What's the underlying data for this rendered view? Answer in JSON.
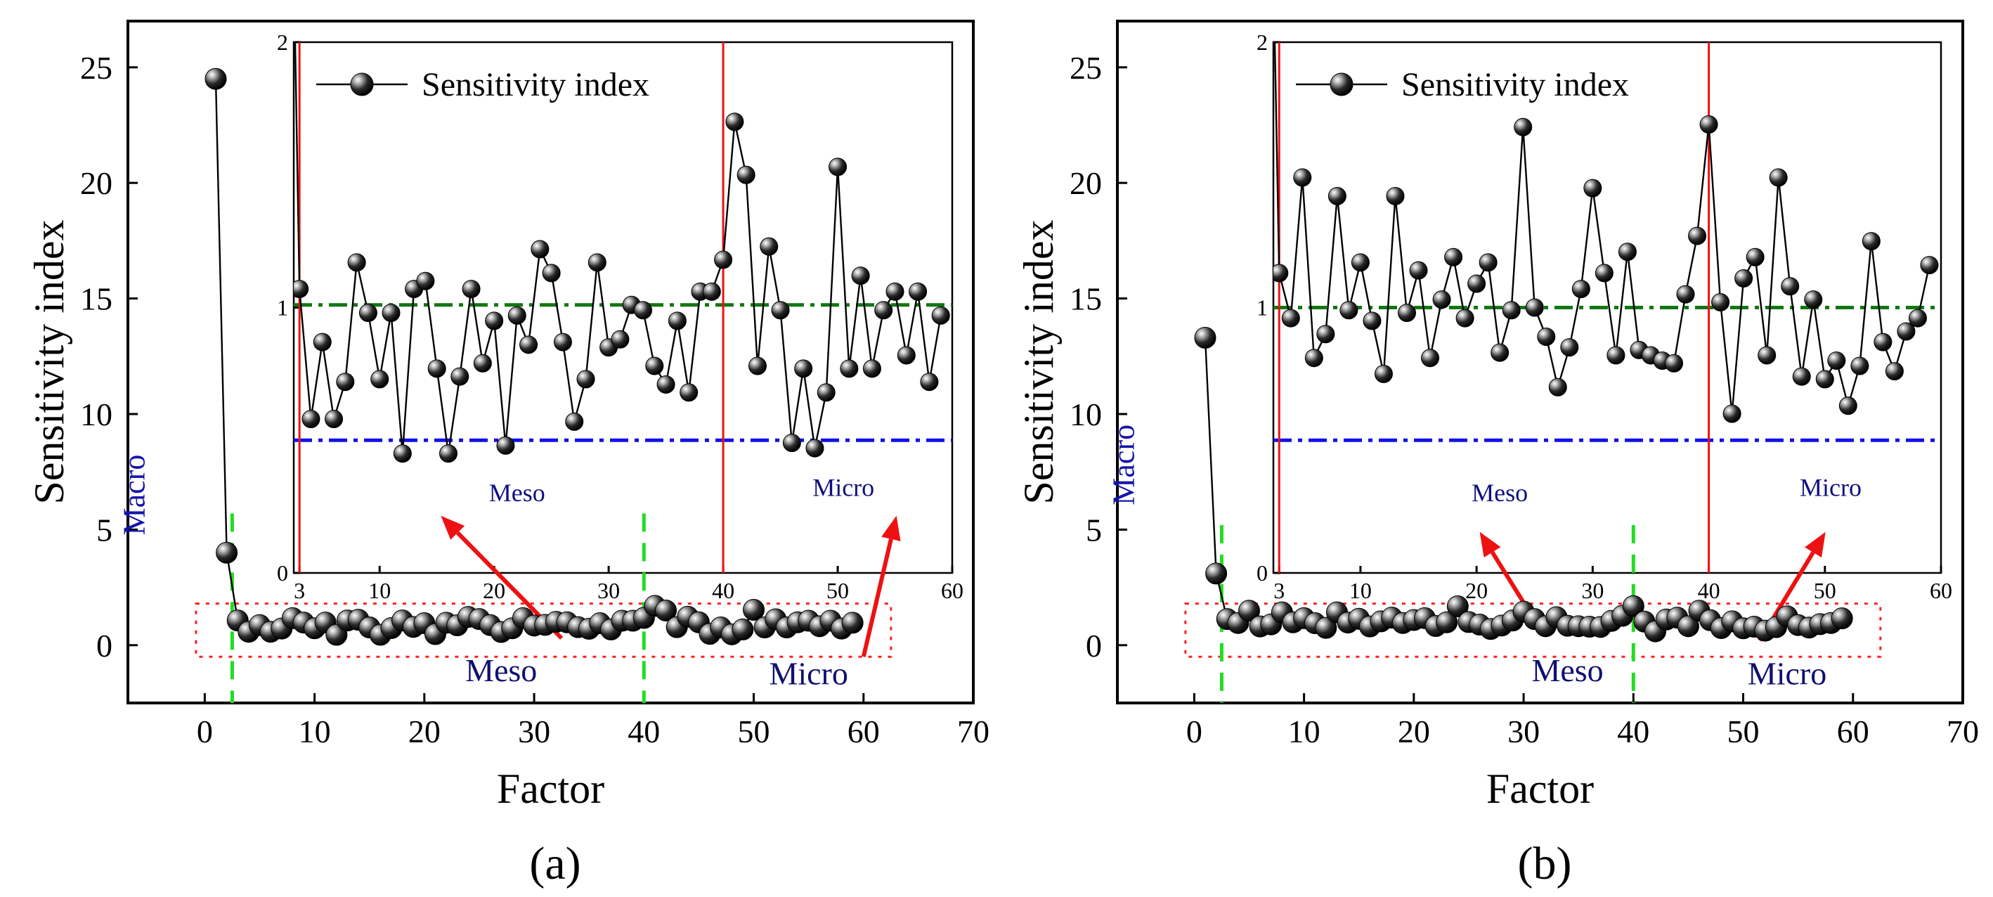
{
  "chart_data": [
    {
      "panel_label": "(a)",
      "type": "scatter",
      "xlabel": "Factor",
      "ylabel": "Sensitivity index",
      "xlim": [
        -7,
        70
      ],
      "ylim": [
        -2.5,
        27
      ],
      "xticks": [
        0,
        10,
        20,
        30,
        40,
        50,
        60,
        70
      ],
      "yticks": [
        0,
        5,
        10,
        15,
        20,
        25
      ],
      "x": [
        1,
        2,
        3,
        4,
        5,
        6,
        7,
        8,
        9,
        10,
        11,
        12,
        13,
        14,
        15,
        16,
        17,
        18,
        19,
        20,
        21,
        22,
        23,
        24,
        25,
        26,
        27,
        28,
        29,
        30,
        31,
        32,
        33,
        34,
        35,
        36,
        37,
        38,
        39,
        40,
        41,
        42,
        43,
        44,
        45,
        46,
        47,
        48,
        49,
        50,
        51,
        52,
        53,
        54,
        55,
        56,
        57,
        58,
        59
      ],
      "values": [
        24.5,
        4.0,
        1.07,
        0.58,
        0.87,
        0.58,
        0.72,
        1.17,
        0.98,
        0.73,
        0.98,
        0.45,
        1.07,
        1.1,
        0.77,
        0.45,
        0.74,
        1.07,
        0.79,
        0.95,
        0.48,
        0.97,
        0.86,
        1.22,
        1.13,
        0.87,
        0.57,
        0.73,
        1.17,
        0.85,
        0.88,
        1.01,
        0.99,
        0.78,
        0.71,
        0.95,
        0.68,
        1.06,
        1.06,
        1.18,
        1.7,
        1.5,
        0.78,
        1.23,
        0.99,
        0.49,
        0.77,
        0.47,
        0.68,
        1.53,
        0.77,
        1.12,
        0.77,
        0.99,
        1.06,
        0.82,
        1.06,
        0.72,
        0.97
      ],
      "legend": "Sensitivity index",
      "region_labels": {
        "macro": "Macro",
        "meso": "Meso",
        "micro": "Micro"
      },
      "inset": {
        "xlim": [
          2.5,
          60
        ],
        "ylim": [
          0,
          2
        ],
        "xticks": [
          3,
          10,
          20,
          30,
          40,
          50,
          60
        ],
        "yticks": [
          0,
          1,
          2
        ],
        "x_start": 3,
        "vlines": [
          3,
          40
        ],
        "hlines": [
          1.01,
          0.5
        ],
        "region_labels": {
          "meso": "Meso",
          "micro": "Micro"
        }
      }
    },
    {
      "panel_label": "(b)",
      "type": "scatter",
      "xlabel": "Factor",
      "ylabel": "Sensitivity index",
      "xlim": [
        -7,
        70
      ],
      "ylim": [
        -2.5,
        27
      ],
      "xticks": [
        0,
        10,
        20,
        30,
        40,
        50,
        60,
        70
      ],
      "yticks": [
        0,
        5,
        10,
        15,
        20,
        25
      ],
      "x": [
        1,
        2,
        3,
        4,
        5,
        6,
        7,
        8,
        9,
        10,
        11,
        12,
        13,
        14,
        15,
        16,
        17,
        18,
        19,
        20,
        21,
        22,
        23,
        24,
        25,
        26,
        27,
        28,
        29,
        30,
        31,
        32,
        33,
        34,
        35,
        36,
        37,
        38,
        39,
        40,
        41,
        42,
        43,
        44,
        45,
        46,
        47,
        48,
        49,
        50,
        51,
        52,
        53,
        54,
        55,
        56,
        57,
        58,
        59
      ],
      "values": [
        13.3,
        3.1,
        1.13,
        0.96,
        1.49,
        0.81,
        0.9,
        1.42,
        0.99,
        1.17,
        0.95,
        0.75,
        1.42,
        0.98,
        1.14,
        0.81,
        1.03,
        1.19,
        0.96,
        1.09,
        1.17,
        0.83,
        0.99,
        1.68,
        1.0,
        0.89,
        0.7,
        0.85,
        1.07,
        1.45,
        1.13,
        0.82,
        1.21,
        0.84,
        0.82,
        0.8,
        0.79,
        1.05,
        1.27,
        1.69,
        1.02,
        0.6,
        1.11,
        1.19,
        0.82,
        1.49,
        1.08,
        0.74,
        1.03,
        0.73,
        0.8,
        0.63,
        0.78,
        1.25,
        0.87,
        0.76,
        0.91,
        0.96,
        1.16
      ],
      "legend": "Sensitivity index",
      "region_labels": {
        "macro": "Macro",
        "meso": "Meso",
        "micro": "Micro"
      },
      "inset": {
        "xlim": [
          2.5,
          60
        ],
        "ylim": [
          0,
          2
        ],
        "xticks": [
          3,
          10,
          20,
          30,
          40,
          50,
          60
        ],
        "yticks": [
          0,
          1,
          2
        ],
        "x_start": 3,
        "vlines": [
          3,
          40
        ],
        "hlines": [
          1.0,
          0.5
        ],
        "region_labels": {
          "meso": "Meso",
          "micro": "Micro"
        }
      }
    }
  ]
}
